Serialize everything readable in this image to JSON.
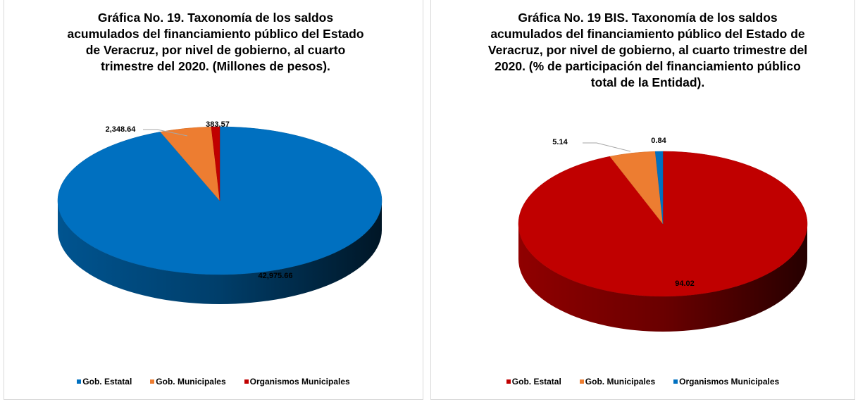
{
  "chart_data": [
    {
      "type": "pie",
      "title": "Gráfica No. 19. Taxonomía de los saldos acumulados del financiamiento público del Estado de Veracruz, por nivel de gobierno, al cuarto trimestre del 2020. (Millones de pesos).",
      "categories": [
        "Gob. Estatal",
        "Gob. Municipales",
        "Organismos Municipales"
      ],
      "values": [
        42975.66,
        2348.64,
        383.57
      ],
      "value_labels": [
        "42,975.66",
        "2,348.64",
        "383.57"
      ],
      "colors": [
        "#0070c0",
        "#ed7d31",
        "#c00000"
      ],
      "legend": "bottom"
    },
    {
      "type": "pie",
      "title": "Gráfica No. 19 BIS. Taxonomía de los saldos acumulados del financiamiento público del Estado de Veracruz, por nivel de gobierno, al cuarto trimestre del 2020. (% de participación del financiamiento público total de la Entidad).",
      "categories": [
        "Gob. Estatal",
        "Gob. Municipales",
        "Organismos Municipales"
      ],
      "values": [
        94.02,
        5.14,
        0.84
      ],
      "colors": [
        "#c00000",
        "#ed7d31",
        "#0070c0"
      ],
      "legend": "bottom"
    }
  ]
}
